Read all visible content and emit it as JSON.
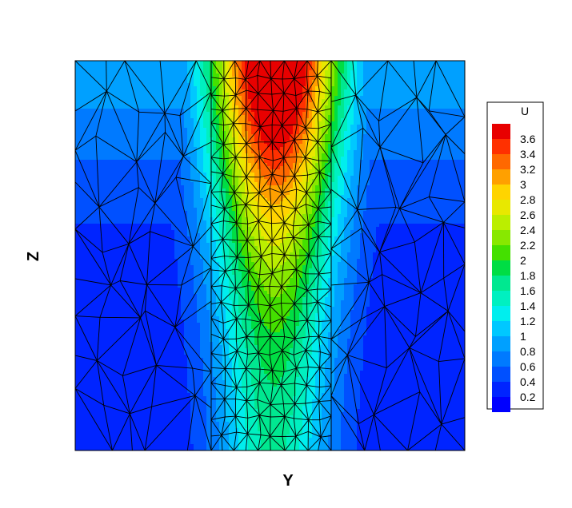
{
  "chart_data": {
    "type": "heatmap",
    "subtype": "contour-flood-with-triangular-mesh",
    "xlabel": "Y",
    "ylabel": "Z",
    "legend": {
      "title": "U",
      "placement": "right",
      "levels": [
        0.2,
        0.4,
        0.6,
        0.8,
        1,
        1.2,
        1.4,
        1.6,
        1.8,
        2,
        2.2,
        2.4,
        2.6,
        2.8,
        3,
        3.2,
        3.4,
        3.6
      ],
      "labels": [
        "0.2",
        "0.4",
        "0.6",
        "0.8",
        "1",
        "1.2",
        "1.4",
        "1.6",
        "1.8",
        "2",
        "2.2",
        "2.4",
        "2.6",
        "2.8",
        "3",
        "3.2",
        "3.4",
        "3.6"
      ],
      "colors": [
        "#0000ff",
        "#0024ff",
        "#0050ff",
        "#007aff",
        "#00a0ff",
        "#00c8ff",
        "#00eeee",
        "#00f0c0",
        "#00e890",
        "#00dd44",
        "#44e000",
        "#88e800",
        "#bbee00",
        "#e8e800",
        "#ffd400",
        "#ffa000",
        "#ff6800",
        "#ff3000",
        "#e80000"
      ]
    },
    "field": {
      "description_values": "U peaks (~3.7) at top center, a vertical jet band along the middle, background 0.2 at bottom rising to ~1.0 at top edge",
      "peak_value": 3.7,
      "background_min": 0.2,
      "background_top": 1.0
    },
    "grid": "triangular mesh overlay"
  }
}
